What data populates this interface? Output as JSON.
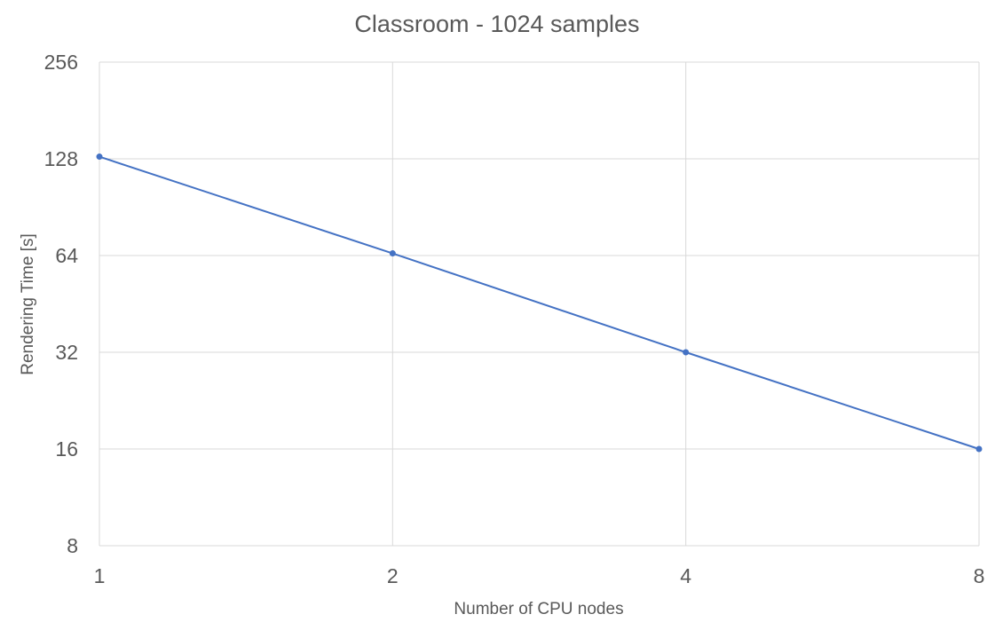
{
  "chart_data": {
    "type": "line",
    "title": "Classroom - 1024 samples",
    "xlabel": "Number of CPU nodes",
    "ylabel": "Rendering Time [s]",
    "x_scale": "log2",
    "y_scale": "log2",
    "x_ticks": [
      "1",
      "2",
      "4",
      "8"
    ],
    "y_ticks": [
      "8",
      "16",
      "32",
      "64",
      "128",
      "256"
    ],
    "xlim": [
      1,
      8
    ],
    "ylim": [
      8,
      256
    ],
    "grid": true,
    "legend": "none",
    "series": [
      {
        "color": "#4472c4",
        "x": [
          1,
          2,
          4,
          8
        ],
        "values": [
          130,
          65,
          32,
          16
        ]
      }
    ]
  }
}
